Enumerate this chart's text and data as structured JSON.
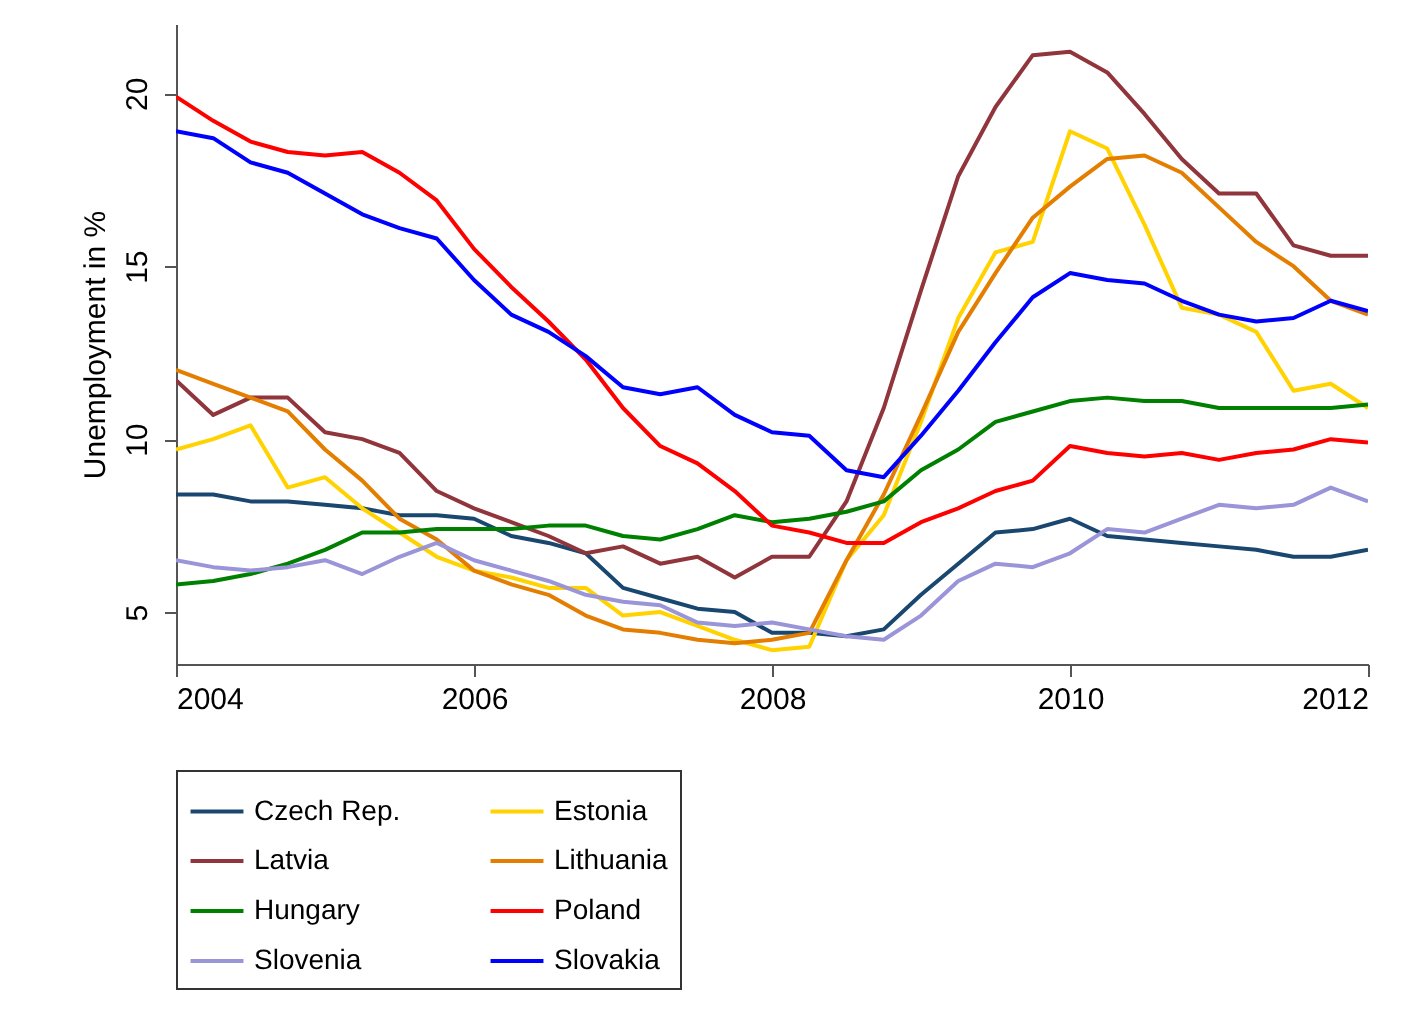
{
  "chart_data": {
    "type": "line",
    "ylabel": "Unemployment in %",
    "x": [
      2004,
      2004.25,
      2004.5,
      2004.75,
      2005,
      2005.25,
      2005.5,
      2005.75,
      2006,
      2006.25,
      2006.5,
      2006.75,
      2007,
      2007.25,
      2007.5,
      2007.75,
      2008,
      2008.25,
      2008.5,
      2008.75,
      2009,
      2009.25,
      2009.5,
      2009.75,
      2010,
      2010.25,
      2010.5,
      2010.75,
      2011,
      2011.25,
      2011.5,
      2011.75,
      2012
    ],
    "series": [
      {
        "name": "Czech Rep.",
        "color": "#1a476f",
        "values": [
          8.4,
          8.4,
          8.2,
          8.2,
          8.1,
          8.0,
          7.8,
          7.8,
          7.7,
          7.2,
          7.0,
          6.7,
          5.7,
          5.4,
          5.1,
          5.0,
          4.4,
          4.4,
          4.3,
          4.5,
          5.5,
          6.4,
          7.3,
          7.4,
          7.7,
          7.2,
          7.1,
          7.0,
          6.9,
          6.8,
          6.6,
          6.6,
          6.8
        ]
      },
      {
        "name": "Estonia",
        "color": "#ffd200",
        "values": [
          9.7,
          10.0,
          10.4,
          8.6,
          8.9,
          8.0,
          7.3,
          6.6,
          6.2,
          6.0,
          5.7,
          5.7,
          4.9,
          5.0,
          4.6,
          4.2,
          3.9,
          4.0,
          6.5,
          7.8,
          10.5,
          13.5,
          15.4,
          15.7,
          18.9,
          18.4,
          16.2,
          13.8,
          13.6,
          13.1,
          11.4,
          11.6,
          10.9
        ]
      },
      {
        "name": "Latvia",
        "color": "#90353b",
        "values": [
          11.7,
          10.7,
          11.2,
          11.2,
          10.2,
          10.0,
          9.6,
          8.5,
          8.0,
          7.6,
          7.2,
          6.7,
          6.9,
          6.4,
          6.6,
          6.0,
          6.6,
          6.6,
          8.2,
          10.9,
          14.3,
          17.6,
          19.6,
          21.1,
          21.2,
          20.6,
          19.4,
          18.1,
          17.1,
          17.1,
          15.6,
          15.3,
          15.3
        ]
      },
      {
        "name": "Lithuania",
        "color": "#e37e00",
        "values": [
          12.0,
          11.6,
          11.2,
          10.8,
          9.7,
          8.8,
          7.7,
          7.1,
          6.2,
          5.8,
          5.5,
          4.9,
          4.5,
          4.4,
          4.2,
          4.1,
          4.2,
          4.4,
          6.5,
          8.4,
          10.7,
          13.1,
          14.8,
          16.4,
          17.3,
          18.1,
          18.2,
          17.7,
          16.7,
          15.7,
          15.0,
          14.0,
          13.6
        ]
      },
      {
        "name": "Hungary",
        "color": "#008000",
        "values": [
          5.8,
          5.9,
          6.1,
          6.4,
          6.8,
          7.3,
          7.3,
          7.4,
          7.4,
          7.4,
          7.5,
          7.5,
          7.2,
          7.1,
          7.4,
          7.8,
          7.6,
          7.7,
          7.9,
          8.2,
          9.1,
          9.7,
          10.5,
          10.8,
          11.1,
          11.2,
          11.1,
          11.1,
          10.9,
          10.9,
          10.9,
          10.9,
          11.0
        ]
      },
      {
        "name": "Poland",
        "color": "#ff0000",
        "values": [
          19.9,
          19.2,
          18.6,
          18.3,
          18.2,
          18.3,
          17.7,
          16.9,
          15.5,
          14.4,
          13.4,
          12.3,
          10.9,
          9.8,
          9.3,
          8.5,
          7.5,
          7.3,
          7.0,
          7.0,
          7.6,
          8.0,
          8.5,
          8.8,
          9.8,
          9.6,
          9.5,
          9.6,
          9.4,
          9.6,
          9.7,
          10.0,
          9.9
        ]
      },
      {
        "name": "Slovenia",
        "color": "#9a94d8",
        "values": [
          6.5,
          6.3,
          6.2,
          6.3,
          6.5,
          6.1,
          6.6,
          7.0,
          6.5,
          6.2,
          5.9,
          5.5,
          5.3,
          5.2,
          4.7,
          4.6,
          4.7,
          4.5,
          4.3,
          4.2,
          4.9,
          5.9,
          6.4,
          6.3,
          6.7,
          7.4,
          7.3,
          7.7,
          8.1,
          8.0,
          8.1,
          8.6,
          8.2
        ]
      },
      {
        "name": "Slovakia",
        "color": "#0000ff",
        "values": [
          18.9,
          18.7,
          18.0,
          17.7,
          17.1,
          16.5,
          16.1,
          15.8,
          14.6,
          13.6,
          13.1,
          12.4,
          11.5,
          11.3,
          11.5,
          10.7,
          10.2,
          10.1,
          9.1,
          8.9,
          10.1,
          11.4,
          12.8,
          14.1,
          14.8,
          14.6,
          14.5,
          14.0,
          13.6,
          13.4,
          13.5,
          14.0,
          13.7
        ]
      }
    ],
    "xlim": [
      2004,
      2012
    ],
    "xticks": [
      2004,
      2006,
      2008,
      2010,
      2012
    ],
    "ylim": [
      3.5,
      22
    ],
    "yticks": [
      5,
      10,
      15,
      20
    ],
    "grid": false,
    "legend": "bottom",
    "marker": "none",
    "line_style": "solid"
  }
}
